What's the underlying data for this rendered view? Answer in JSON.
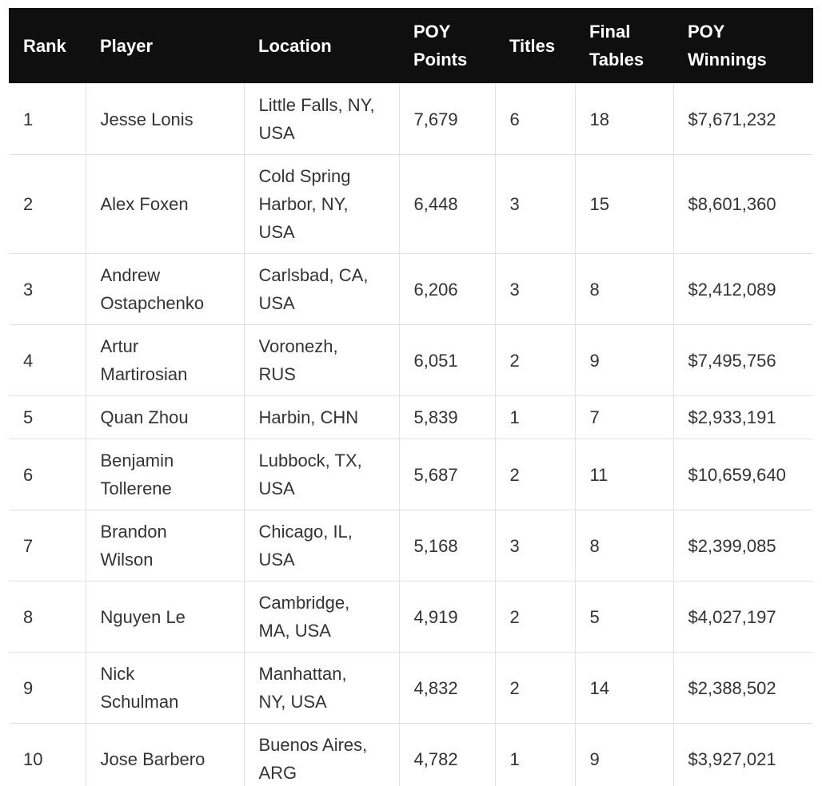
{
  "table": {
    "columns": [
      "Rank",
      "Player",
      "Location",
      "POY Points",
      "Titles",
      "Final Tables",
      "POY Winnings"
    ],
    "rows": [
      [
        "1",
        "Jesse Lonis",
        "Little Falls, NY, USA",
        "7,679",
        "6",
        "18",
        "$7,671,232"
      ],
      [
        "2",
        "Alex Foxen",
        "Cold Spring Harbor, NY, USA",
        "6,448",
        "3",
        "15",
        "$8,601,360"
      ],
      [
        "3",
        "Andrew Ostapchenko",
        "Carlsbad, CA, USA",
        "6,206",
        "3",
        "8",
        "$2,412,089"
      ],
      [
        "4",
        "Artur Martirosian",
        "Voronezh, RUS",
        "6,051",
        "2",
        "9",
        "$7,495,756"
      ],
      [
        "5",
        "Quan Zhou",
        "Harbin, CHN",
        "5,839",
        "1",
        "7",
        "$2,933,191"
      ],
      [
        "6",
        "Benjamin Tollerene",
        "Lubbock, TX, USA",
        "5,687",
        "2",
        "11",
        "$10,659,640"
      ],
      [
        "7",
        "Brandon Wilson",
        "Chicago, IL, USA",
        "5,168",
        "3",
        "8",
        "$2,399,085"
      ],
      [
        "8",
        "Nguyen Le",
        "Cambridge, MA, USA",
        "4,919",
        "2",
        "5",
        "$4,027,197"
      ],
      [
        "9",
        "Nick Schulman",
        "Manhattan, NY, USA",
        "4,832",
        "2",
        "14",
        "$2,388,502"
      ],
      [
        "10",
        "Jose Barbero",
        "Buenos Aires, ARG",
        "4,782",
        "1",
        "9",
        "$3,927,021"
      ]
    ]
  }
}
